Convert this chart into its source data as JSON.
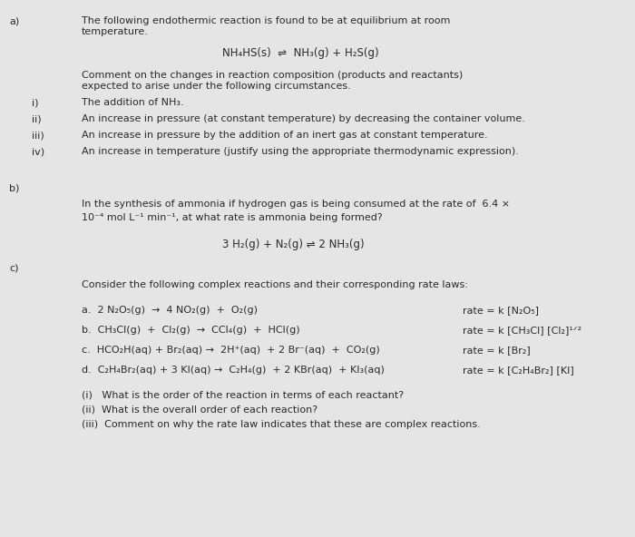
{
  "bg_color": "#e5e5e5",
  "text_color": "#2a2a2a",
  "fs": 8.0,
  "fs_eq": 8.2,
  "section_a_label": "a)",
  "section_b_label": "b)",
  "section_c_label": "c)",
  "section_a_intro": "The following endothermic reaction is found to be at equilibrium at room\ntemperature.",
  "section_a_eq": "NH₄HS(s)  ⇌  NH₃(g) + H₂S(g)",
  "section_a_comment": "Comment on the changes in reaction composition (products and reactants)\nexpected to arise under the following circumstances.",
  "section_a_i_label": "i)",
  "section_a_i": "The addition of NH₃.",
  "section_a_ii_label": "ii)",
  "section_a_ii": "An increase in pressure (at constant temperature) by decreasing the container volume.",
  "section_a_iii_label": "iii)",
  "section_a_iii": "An increase in pressure by the addition of an inert gas at constant temperature.",
  "section_a_iv_label": "iv)",
  "section_a_iv": "An increase in temperature (justify using the appropriate thermodynamic expression).",
  "section_b_text1": "In the synthesis of ammonia if hydrogen gas is being consumed at the rate of  6.4 ×",
  "section_b_text2": "10⁻⁴ mol L⁻¹ min⁻¹, at what rate is ammonia being formed?",
  "section_b_eq": "3 H₂(g) + N₂(g) ⇌ 2 NH₃(g)",
  "section_c_intro": "Consider the following complex reactions and their corresponding rate laws:",
  "reaction_a_lhs": "a.  2 N₂O₅(g)  →  4 NO₂(g)  +  O₂(g)",
  "reaction_a_rate": "rate = k [N₂O₅]",
  "reaction_b_lhs": "b.  CH₃Cl(g)  +  Cl₂(g)  →  CCl₄(g)  +  HCl(g)",
  "reaction_b_rate": "rate = k [CH₃Cl] [Cl₂]¹ᐟ²",
  "reaction_c_lhs": "c.  HCO₂H(aq) + Br₂(aq) →  2H⁺(aq)  + 2 Br⁻(aq)  +  CO₂(g)",
  "reaction_c_rate": "rate = k [Br₂]",
  "reaction_d_lhs": "d.  C₂H₄Br₂(aq) + 3 KI(aq) →  C₂H₄(g)  + 2 KBr(aq)  + KI₃(aq)",
  "reaction_d_rate": "rate = k [C₂H₄Br₂] [KI]",
  "questions_i": "(i)   What is the order of the reaction in terms of each reactant?",
  "questions_ii": "(ii)  What is the overall order of each reaction?",
  "questions_iii": "(iii)  Comment on why the rate law indicates that these are complex reactions."
}
